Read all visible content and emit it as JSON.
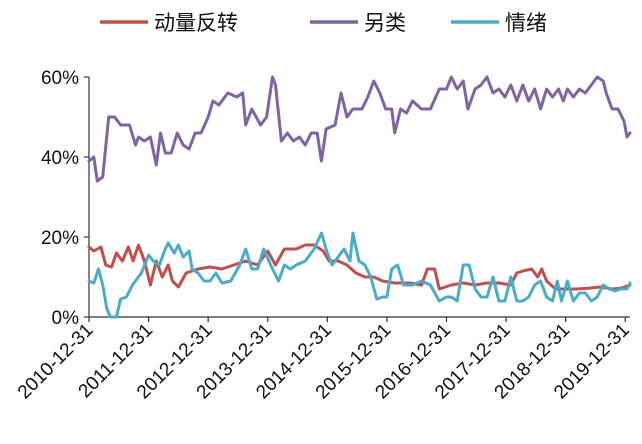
{
  "chart_data": {
    "type": "line",
    "title": "",
    "xlabel": "",
    "ylabel": "",
    "ylim": [
      0,
      0.6
    ],
    "y_ticks": [
      0,
      0.2,
      0.4,
      0.6
    ],
    "y_tick_labels": [
      "0%",
      "20%",
      "40%",
      "60%"
    ],
    "x_range": [
      2010.92,
      2020.0
    ],
    "x_ticks": [
      2010.92,
      2011.92,
      2012.92,
      2013.92,
      2014.92,
      2015.92,
      2016.92,
      2017.92,
      2018.92,
      2019.92
    ],
    "x_tick_labels": [
      "2010-12-31",
      "2011-12-31",
      "2012-12-31",
      "2013-12-31",
      "2014-12-31",
      "2015-12-31",
      "2016-12-31",
      "2017-12-31",
      "2018-12-31",
      "2019-12-31"
    ],
    "grid": false,
    "legend_position": "top",
    "series": [
      {
        "name": "动量反转",
        "color": "#c0504d",
        "points": [
          [
            2010.92,
            0.175
          ],
          [
            2011.0,
            0.165
          ],
          [
            2011.12,
            0.175
          ],
          [
            2011.2,
            0.13
          ],
          [
            2011.3,
            0.125
          ],
          [
            2011.38,
            0.16
          ],
          [
            2011.48,
            0.14
          ],
          [
            2011.58,
            0.175
          ],
          [
            2011.66,
            0.14
          ],
          [
            2011.75,
            0.18
          ],
          [
            2011.85,
            0.14
          ],
          [
            2011.95,
            0.08
          ],
          [
            2012.05,
            0.14
          ],
          [
            2012.15,
            0.1
          ],
          [
            2012.25,
            0.13
          ],
          [
            2012.32,
            0.09
          ],
          [
            2012.42,
            0.075
          ],
          [
            2012.55,
            0.11
          ],
          [
            2012.75,
            0.12
          ],
          [
            2012.95,
            0.125
          ],
          [
            2013.15,
            0.12
          ],
          [
            2013.35,
            0.13
          ],
          [
            2013.55,
            0.14
          ],
          [
            2013.75,
            0.13
          ],
          [
            2013.92,
            0.165
          ],
          [
            2014.05,
            0.13
          ],
          [
            2014.2,
            0.17
          ],
          [
            2014.4,
            0.17
          ],
          [
            2014.55,
            0.18
          ],
          [
            2014.7,
            0.18
          ],
          [
            2014.85,
            0.165
          ],
          [
            2014.95,
            0.14
          ],
          [
            2015.1,
            0.14
          ],
          [
            2015.25,
            0.13
          ],
          [
            2015.4,
            0.11
          ],
          [
            2015.55,
            0.1
          ],
          [
            2015.7,
            0.1
          ],
          [
            2015.85,
            0.09
          ],
          [
            2016.05,
            0.085
          ],
          [
            2016.3,
            0.085
          ],
          [
            2016.5,
            0.08
          ],
          [
            2016.6,
            0.12
          ],
          [
            2016.72,
            0.12
          ],
          [
            2016.8,
            0.07
          ],
          [
            2017.0,
            0.08
          ],
          [
            2017.2,
            0.085
          ],
          [
            2017.4,
            0.08
          ],
          [
            2017.6,
            0.085
          ],
          [
            2017.8,
            0.085
          ],
          [
            2018.0,
            0.08
          ],
          [
            2018.1,
            0.11
          ],
          [
            2018.2,
            0.115
          ],
          [
            2018.35,
            0.12
          ],
          [
            2018.45,
            0.1
          ],
          [
            2018.52,
            0.12
          ],
          [
            2018.6,
            0.09
          ],
          [
            2018.75,
            0.07
          ],
          [
            2018.9,
            0.07
          ],
          [
            2019.1,
            0.07
          ],
          [
            2019.3,
            0.072
          ],
          [
            2019.5,
            0.075
          ],
          [
            2019.7,
            0.07
          ],
          [
            2019.85,
            0.072
          ],
          [
            2020.0,
            0.08
          ]
        ]
      },
      {
        "name": "另类",
        "color": "#8064a2",
        "points": [
          [
            2010.92,
            0.39
          ],
          [
            2011.0,
            0.4
          ],
          [
            2011.06,
            0.34
          ],
          [
            2011.15,
            0.35
          ],
          [
            2011.25,
            0.5
          ],
          [
            2011.35,
            0.5
          ],
          [
            2011.45,
            0.48
          ],
          [
            2011.6,
            0.48
          ],
          [
            2011.7,
            0.43
          ],
          [
            2011.75,
            0.45
          ],
          [
            2011.85,
            0.44
          ],
          [
            2011.95,
            0.45
          ],
          [
            2012.05,
            0.38
          ],
          [
            2012.12,
            0.46
          ],
          [
            2012.2,
            0.41
          ],
          [
            2012.3,
            0.41
          ],
          [
            2012.4,
            0.46
          ],
          [
            2012.5,
            0.43
          ],
          [
            2012.6,
            0.42
          ],
          [
            2012.7,
            0.46
          ],
          [
            2012.8,
            0.46
          ],
          [
            2012.92,
            0.5
          ],
          [
            2013.0,
            0.54
          ],
          [
            2013.1,
            0.53
          ],
          [
            2013.25,
            0.56
          ],
          [
            2013.4,
            0.55
          ],
          [
            2013.5,
            0.56
          ],
          [
            2013.55,
            0.48
          ],
          [
            2013.65,
            0.52
          ],
          [
            2013.8,
            0.48
          ],
          [
            2013.9,
            0.5
          ],
          [
            2014.0,
            0.6
          ],
          [
            2014.05,
            0.58
          ],
          [
            2014.15,
            0.44
          ],
          [
            2014.25,
            0.46
          ],
          [
            2014.35,
            0.44
          ],
          [
            2014.45,
            0.45
          ],
          [
            2014.55,
            0.43
          ],
          [
            2014.65,
            0.46
          ],
          [
            2014.75,
            0.46
          ],
          [
            2014.82,
            0.39
          ],
          [
            2014.9,
            0.47
          ],
          [
            2015.05,
            0.48
          ],
          [
            2015.15,
            0.56
          ],
          [
            2015.25,
            0.5
          ],
          [
            2015.35,
            0.52
          ],
          [
            2015.5,
            0.52
          ],
          [
            2015.6,
            0.55
          ],
          [
            2015.7,
            0.59
          ],
          [
            2015.8,
            0.56
          ],
          [
            2015.9,
            0.52
          ],
          [
            2016.0,
            0.52
          ],
          [
            2016.05,
            0.46
          ],
          [
            2016.15,
            0.52
          ],
          [
            2016.25,
            0.51
          ],
          [
            2016.35,
            0.54
          ],
          [
            2016.5,
            0.52
          ],
          [
            2016.65,
            0.52
          ],
          [
            2016.8,
            0.57
          ],
          [
            2016.92,
            0.57
          ],
          [
            2017.0,
            0.6
          ],
          [
            2017.1,
            0.57
          ],
          [
            2017.2,
            0.59
          ],
          [
            2017.28,
            0.52
          ],
          [
            2017.4,
            0.57
          ],
          [
            2017.5,
            0.58
          ],
          [
            2017.6,
            0.6
          ],
          [
            2017.7,
            0.56
          ],
          [
            2017.8,
            0.57
          ],
          [
            2017.9,
            0.55
          ],
          [
            2018.0,
            0.58
          ],
          [
            2018.1,
            0.54
          ],
          [
            2018.2,
            0.58
          ],
          [
            2018.3,
            0.54
          ],
          [
            2018.4,
            0.57
          ],
          [
            2018.5,
            0.52
          ],
          [
            2018.6,
            0.57
          ],
          [
            2018.7,
            0.55
          ],
          [
            2018.8,
            0.57
          ],
          [
            2018.88,
            0.54
          ],
          [
            2018.95,
            0.57
          ],
          [
            2019.05,
            0.55
          ],
          [
            2019.15,
            0.57
          ],
          [
            2019.25,
            0.56
          ],
          [
            2019.35,
            0.58
          ],
          [
            2019.45,
            0.6
          ],
          [
            2019.55,
            0.59
          ],
          [
            2019.6,
            0.56
          ],
          [
            2019.7,
            0.52
          ],
          [
            2019.8,
            0.52
          ],
          [
            2019.9,
            0.49
          ],
          [
            2019.95,
            0.45
          ],
          [
            2020.0,
            0.46
          ]
        ]
      },
      {
        "name": "情绪",
        "color": "#4bacc6",
        "points": [
          [
            2010.92,
            0.09
          ],
          [
            2011.0,
            0.085
          ],
          [
            2011.08,
            0.12
          ],
          [
            2011.15,
            0.08
          ],
          [
            2011.22,
            0.02
          ],
          [
            2011.28,
            0.0
          ],
          [
            2011.38,
            0.0
          ],
          [
            2011.45,
            0.045
          ],
          [
            2011.55,
            0.05
          ],
          [
            2011.65,
            0.08
          ],
          [
            2011.8,
            0.11
          ],
          [
            2011.92,
            0.155
          ],
          [
            2012.0,
            0.14
          ],
          [
            2012.1,
            0.13
          ],
          [
            2012.2,
            0.17
          ],
          [
            2012.25,
            0.185
          ],
          [
            2012.35,
            0.16
          ],
          [
            2012.42,
            0.18
          ],
          [
            2012.5,
            0.15
          ],
          [
            2012.6,
            0.165
          ],
          [
            2012.65,
            0.12
          ],
          [
            2012.75,
            0.11
          ],
          [
            2012.85,
            0.09
          ],
          [
            2012.95,
            0.09
          ],
          [
            2013.05,
            0.11
          ],
          [
            2013.15,
            0.085
          ],
          [
            2013.3,
            0.09
          ],
          [
            2013.45,
            0.13
          ],
          [
            2013.55,
            0.17
          ],
          [
            2013.65,
            0.12
          ],
          [
            2013.75,
            0.12
          ],
          [
            2013.85,
            0.17
          ],
          [
            2014.0,
            0.12
          ],
          [
            2014.1,
            0.09
          ],
          [
            2014.2,
            0.13
          ],
          [
            2014.3,
            0.12
          ],
          [
            2014.4,
            0.13
          ],
          [
            2014.55,
            0.14
          ],
          [
            2014.7,
            0.17
          ],
          [
            2014.82,
            0.21
          ],
          [
            2014.92,
            0.16
          ],
          [
            2015.0,
            0.13
          ],
          [
            2015.1,
            0.15
          ],
          [
            2015.2,
            0.17
          ],
          [
            2015.3,
            0.14
          ],
          [
            2015.35,
            0.21
          ],
          [
            2015.45,
            0.14
          ],
          [
            2015.55,
            0.13
          ],
          [
            2015.65,
            0.1
          ],
          [
            2015.75,
            0.045
          ],
          [
            2015.85,
            0.05
          ],
          [
            2015.92,
            0.05
          ],
          [
            2016.0,
            0.12
          ],
          [
            2016.1,
            0.13
          ],
          [
            2016.2,
            0.08
          ],
          [
            2016.35,
            0.08
          ],
          [
            2016.5,
            0.09
          ],
          [
            2016.65,
            0.08
          ],
          [
            2016.8,
            0.04
          ],
          [
            2016.92,
            0.05
          ],
          [
            2017.0,
            0.05
          ],
          [
            2017.1,
            0.04
          ],
          [
            2017.2,
            0.13
          ],
          [
            2017.3,
            0.13
          ],
          [
            2017.4,
            0.07
          ],
          [
            2017.5,
            0.05
          ],
          [
            2017.6,
            0.05
          ],
          [
            2017.7,
            0.1
          ],
          [
            2017.8,
            0.04
          ],
          [
            2017.9,
            0.04
          ],
          [
            2018.0,
            0.1
          ],
          [
            2018.1,
            0.04
          ],
          [
            2018.2,
            0.04
          ],
          [
            2018.3,
            0.05
          ],
          [
            2018.4,
            0.08
          ],
          [
            2018.5,
            0.09
          ],
          [
            2018.6,
            0.05
          ],
          [
            2018.7,
            0.04
          ],
          [
            2018.78,
            0.09
          ],
          [
            2018.85,
            0.04
          ],
          [
            2018.95,
            0.09
          ],
          [
            2019.05,
            0.04
          ],
          [
            2019.15,
            0.06
          ],
          [
            2019.25,
            0.06
          ],
          [
            2019.35,
            0.04
          ],
          [
            2019.45,
            0.05
          ],
          [
            2019.55,
            0.08
          ],
          [
            2019.65,
            0.07
          ],
          [
            2019.75,
            0.065
          ],
          [
            2019.85,
            0.07
          ],
          [
            2019.95,
            0.07
          ],
          [
            2020.0,
            0.085
          ]
        ]
      }
    ]
  }
}
